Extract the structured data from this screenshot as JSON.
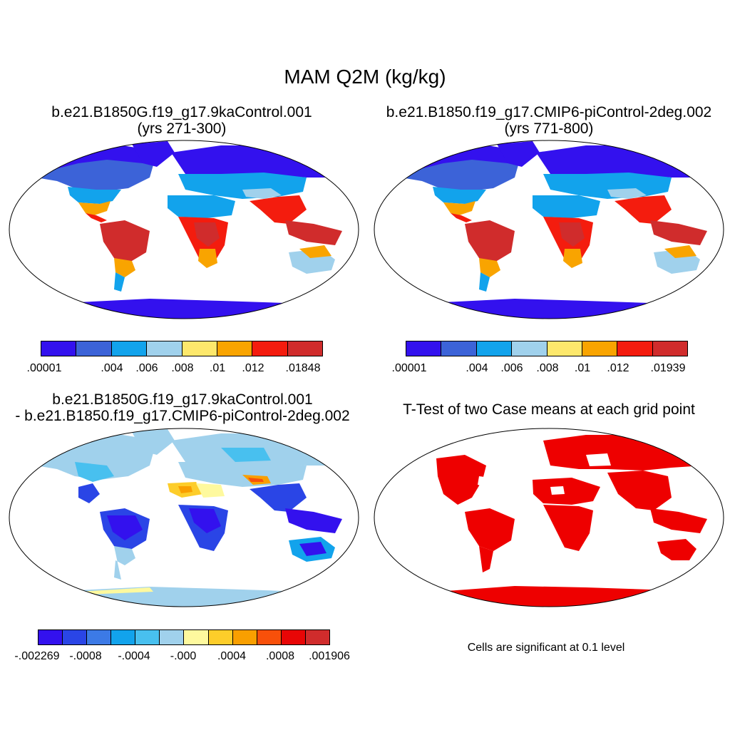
{
  "figure": {
    "title": "MAM Q2M (kg/kg)"
  },
  "panels": [
    {
      "title_line1": "b.e21.B1850G.f19_g17.9kaControl.001",
      "title_line2": "(yrs 271-300)",
      "palette": [
        "#3311ee",
        "#3c63d8",
        "#12a3ec",
        "#a0d1ec",
        "#fde86c",
        "#f9a400",
        "#f41c0e",
        "#d02c2c"
      ],
      "tick_labels": [
        ".00001",
        ".004",
        ".006",
        ".008",
        ".01",
        ".012",
        ".01848"
      ],
      "colors": {
        "polar": "#3311ee",
        "boreal": "#3c63d8",
        "mid": "#12a3ec",
        "dry": "#a0d1ec",
        "semi": "#fde86c",
        "warm": "#f9a400",
        "humid": "#f41c0e",
        "tropical": "#d02c2c"
      }
    },
    {
      "title_line1": "b.e21.B1850.f19_g17.CMIP6-piControl-2deg.002",
      "title_line2": "(yrs 771-800)",
      "palette": [
        "#3311ee",
        "#3c63d8",
        "#12a3ec",
        "#a0d1ec",
        "#fde86c",
        "#f9a400",
        "#f41c0e",
        "#d02c2c"
      ],
      "tick_labels": [
        ".00001",
        ".004",
        ".006",
        ".008",
        ".01",
        ".012",
        ".01939"
      ],
      "colors": {
        "polar": "#3311ee",
        "boreal": "#3c63d8",
        "mid": "#12a3ec",
        "dry": "#a0d1ec",
        "semi": "#fde86c",
        "warm": "#f9a400",
        "humid": "#f41c0e",
        "tropical": "#d02c2c"
      }
    },
    {
      "title_line1": "b.e21.B1850G.f19_g17.9kaControl.001",
      "title_line2": "- b.e21.B1850.f19_g17.CMIP6-piControl-2deg.002",
      "palette": [
        "#3311ee",
        "#2a45e6",
        "#3c7ae6",
        "#12a3ec",
        "#48c0ef",
        "#a0d1ec",
        "#fef99e",
        "#fdcd2a",
        "#f99f00",
        "#f8500a",
        "#e80606",
        "#d02c2c"
      ],
      "tick_labels": [
        "-.002269",
        "-.0008",
        "-.0004",
        "-.000",
        ".0004",
        ".0008",
        ".001906"
      ],
      "colors": {
        "base": "#a0d1ec",
        "neg1": "#3311ee",
        "neg2": "#2a45e6",
        "neg3": "#12a3ec",
        "neg4": "#48c0ef",
        "pos1": "#fef99e",
        "pos2": "#fdcd2a",
        "pos3": "#f99f00",
        "pos4": "#f8500a"
      }
    },
    {
      "title_line1": "T-Test of two Case means at each grid point",
      "significance_note": "Cells are significant at 0.1 level",
      "colors": {
        "significant": "#ee0000"
      }
    }
  ]
}
